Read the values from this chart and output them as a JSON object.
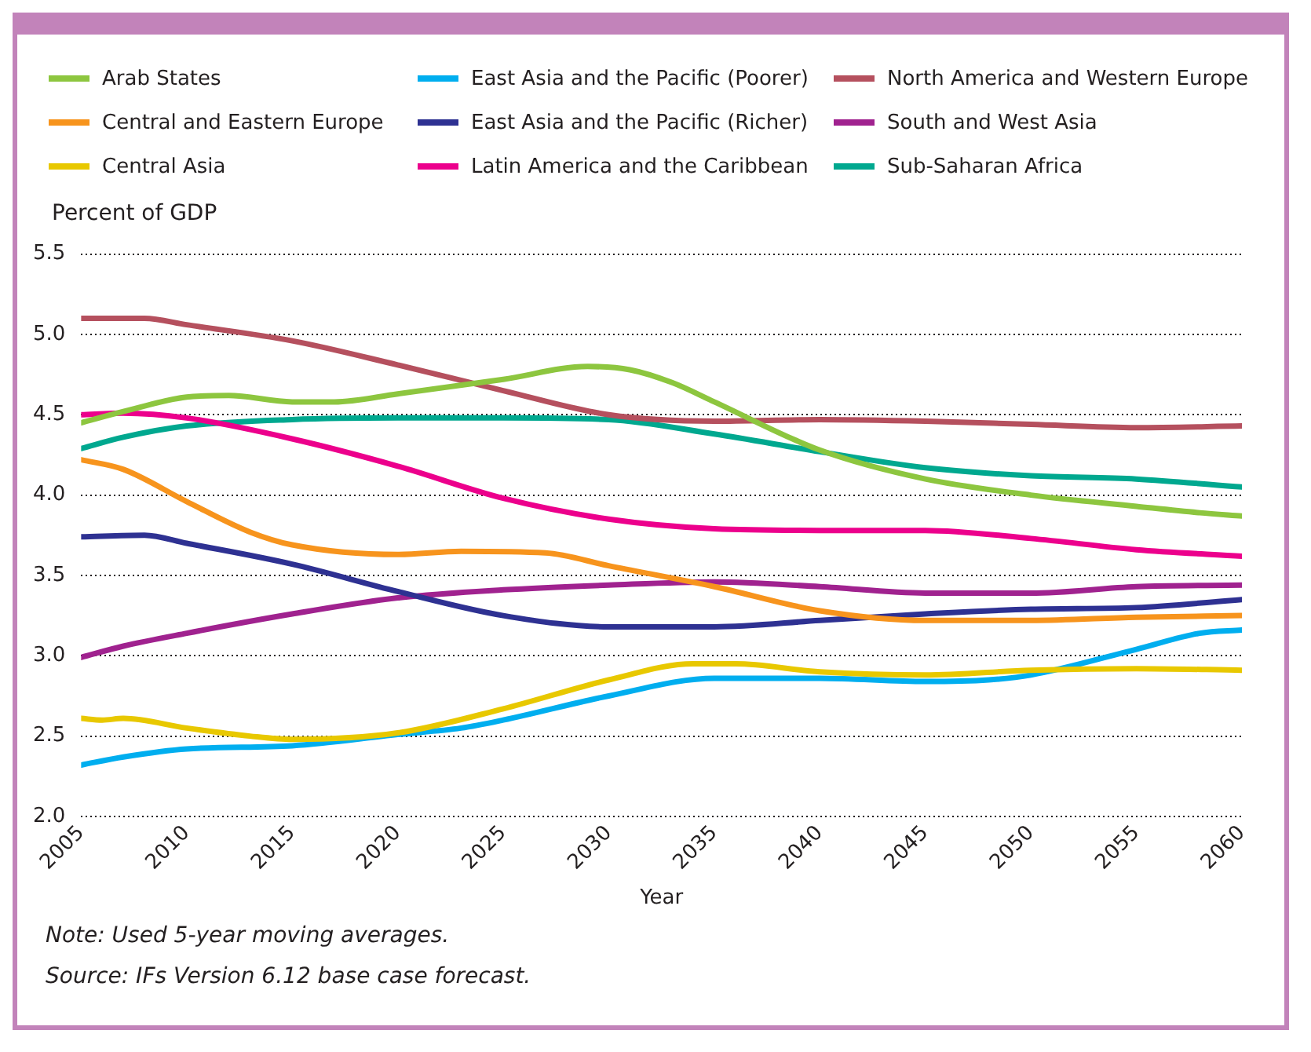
{
  "chart_data": {
    "type": "line",
    "xlabel": "Year",
    "ylabel": "Percent of GDP",
    "xlim": [
      2005,
      2060
    ],
    "xticks": [
      2005,
      2010,
      2015,
      2020,
      2025,
      2030,
      2035,
      2040,
      2045,
      2050,
      2055,
      2060
    ],
    "ylim": [
      2.0,
      5.5
    ],
    "yticks": [
      {
        "value": 2,
        "label": "2.0"
      },
      2.5,
      {
        "value": 3,
        "label": "3.0"
      },
      3.5,
      {
        "value": 4,
        "label": "4.0"
      },
      4.5,
      {
        "value": 5,
        "label": "5.0"
      },
      5.5
    ],
    "grid": "y",
    "legend": "top",
    "marker": "none",
    "line_style": "solid",
    "annotations": [
      "Note: Used 5-year moving averages.",
      "Source: IFs Version 6.12 base case forecast."
    ],
    "series": [
      {
        "name": "Arab States",
        "color": "#8dc63f",
        "x": [
          2005,
          2007,
          2010,
          2012,
          2015,
          2017,
          2020,
          2025,
          2029,
          2031,
          2033,
          2035,
          2040,
          2045,
          2050,
          2055,
          2058,
          2060
        ],
        "values": [
          4.45,
          4.52,
          4.61,
          4.62,
          4.58,
          4.58,
          4.63,
          4.72,
          4.8,
          4.78,
          4.7,
          4.58,
          4.28,
          4.1,
          4.0,
          3.93,
          3.89,
          3.87
        ]
      },
      {
        "name": "Central and Eastern Europe",
        "color": "#f7941d",
        "x": [
          2005,
          2007,
          2010,
          2013,
          2015,
          2020,
          2023,
          2027,
          2030,
          2035,
          2040,
          2045,
          2050,
          2055,
          2060
        ],
        "values": [
          4.22,
          4.16,
          3.96,
          3.77,
          3.69,
          3.63,
          3.65,
          3.64,
          3.56,
          3.43,
          3.28,
          3.22,
          3.22,
          3.24,
          3.25
        ]
      },
      {
        "name": "Central Asia",
        "color": "#e8c800",
        "x": [
          2005,
          2006,
          2007,
          2010,
          2013,
          2015,
          2020,
          2025,
          2030,
          2034,
          2036,
          2040,
          2045,
          2050,
          2055,
          2060
        ],
        "values": [
          2.61,
          2.6,
          2.61,
          2.55,
          2.5,
          2.48,
          2.52,
          2.67,
          2.85,
          2.95,
          2.95,
          2.9,
          2.88,
          2.91,
          2.92,
          2.91
        ]
      },
      {
        "name": "East Asia and the Pacific (Poorer)",
        "color": "#00aeef",
        "x": [
          2005,
          2007,
          2010,
          2015,
          2020,
          2023,
          2025,
          2030,
          2035,
          2040,
          2045,
          2048,
          2050,
          2055,
          2058,
          2060
        ],
        "values": [
          2.32,
          2.37,
          2.42,
          2.44,
          2.51,
          2.55,
          2.6,
          2.75,
          2.86,
          2.86,
          2.84,
          2.85,
          2.88,
          3.04,
          3.14,
          3.16
        ]
      },
      {
        "name": "East Asia and the Pacific (Richer)",
        "color": "#2e3192",
        "x": [
          2005,
          2008,
          2010,
          2015,
          2020,
          2025,
          2030,
          2035,
          2040,
          2045,
          2050,
          2055,
          2060
        ],
        "values": [
          3.74,
          3.75,
          3.7,
          3.57,
          3.4,
          3.25,
          3.18,
          3.18,
          3.22,
          3.26,
          3.29,
          3.3,
          3.35
        ]
      },
      {
        "name": "Latin America and the Caribbean",
        "color": "#ec008c",
        "x": [
          2005,
          2007,
          2010,
          2015,
          2020,
          2025,
          2030,
          2035,
          2040,
          2045,
          2050,
          2055,
          2060
        ],
        "values": [
          4.5,
          4.51,
          4.48,
          4.35,
          4.18,
          3.98,
          3.85,
          3.79,
          3.78,
          3.78,
          3.73,
          3.66,
          3.62
        ]
      },
      {
        "name": "North America and Western Europe",
        "color": "#b5505e",
        "x": [
          2005,
          2008,
          2010,
          2015,
          2020,
          2025,
          2030,
          2035,
          2040,
          2045,
          2050,
          2055,
          2060
        ],
        "values": [
          5.1,
          5.1,
          5.06,
          4.96,
          4.81,
          4.65,
          4.5,
          4.46,
          4.47,
          4.46,
          4.44,
          4.42,
          4.43
        ]
      },
      {
        "name": "South and West Asia",
        "color": "#a0228f",
        "x": [
          2005,
          2007,
          2010,
          2015,
          2020,
          2025,
          2030,
          2035,
          2040,
          2045,
          2050,
          2055,
          2060
        ],
        "values": [
          2.99,
          3.06,
          3.14,
          3.26,
          3.36,
          3.41,
          3.44,
          3.46,
          3.43,
          3.39,
          3.39,
          3.43,
          3.44
        ]
      },
      {
        "name": "Sub-Saharan Africa",
        "color": "#00a88f",
        "x": [
          2005,
          2007,
          2010,
          2015,
          2020,
          2025,
          2030,
          2035,
          2040,
          2045,
          2050,
          2055,
          2060
        ],
        "values": [
          4.29,
          4.36,
          4.43,
          4.47,
          4.48,
          4.48,
          4.47,
          4.38,
          4.27,
          4.17,
          4.12,
          4.1,
          4.05
        ]
      }
    ]
  }
}
